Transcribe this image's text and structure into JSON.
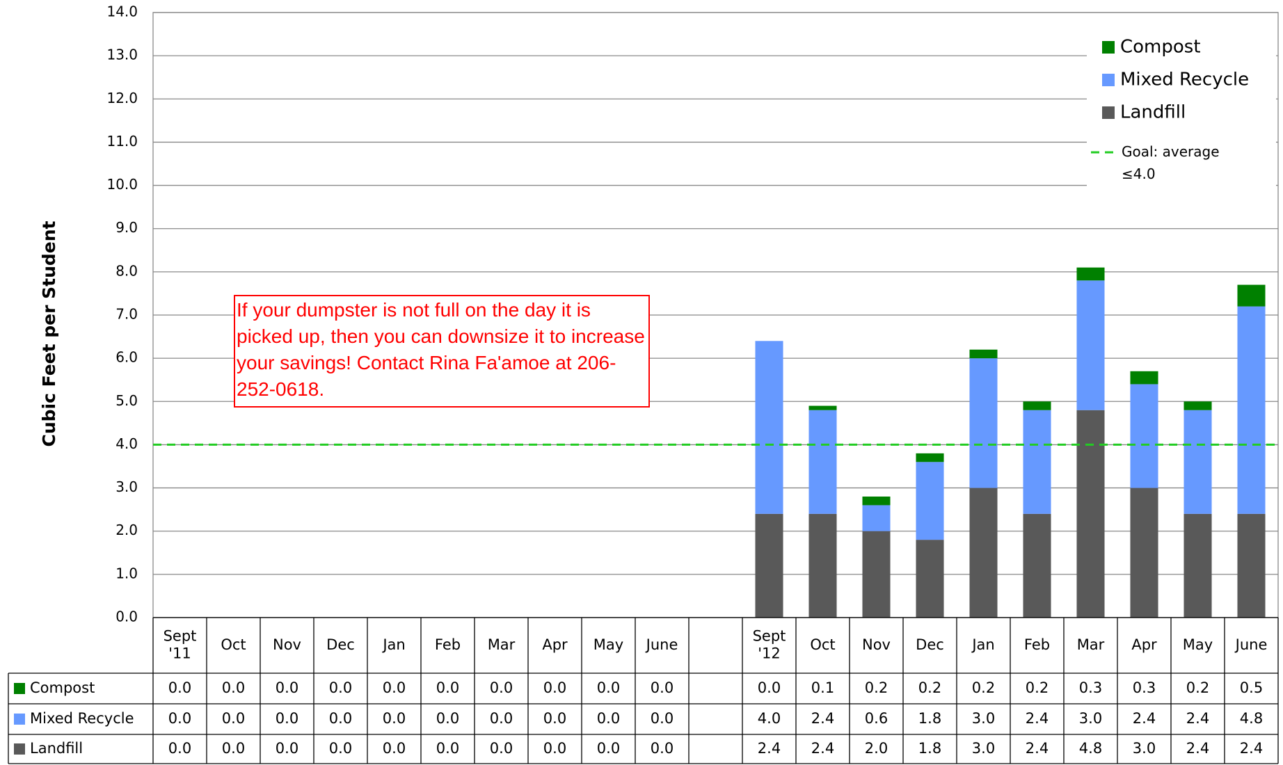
{
  "chart_data": {
    "type": "bar",
    "stacked": true,
    "ylabel": "Cubic Feet per Student",
    "categories": [
      "Sept\n'11",
      "Oct",
      "Nov",
      "Dec",
      "Jan",
      "Feb",
      "Mar",
      "Apr",
      "May",
      "June",
      null,
      "Sept\n'12",
      "Oct",
      "Nov",
      "Dec",
      "Jan",
      "Feb",
      "Mar",
      "Apr",
      "May",
      "June"
    ],
    "series": [
      {
        "name": "Compost",
        "color": "#008000",
        "values": [
          0,
          0,
          0,
          0,
          0,
          0,
          0,
          0,
          0,
          0,
          null,
          0,
          0.1,
          0.2,
          0.2,
          0.2,
          0.2,
          0.3,
          0.3,
          0.2,
          0.5
        ],
        "value_labels": [
          "0.0",
          "0.0",
          "0.0",
          "0.0",
          "0.0",
          "0.0",
          "0.0",
          "0.0",
          "0.0",
          "0.0",
          null,
          "0.0",
          "0.1",
          "0.2",
          "0.2",
          "0.2",
          "0.2",
          "0.3",
          "0.3",
          "0.2",
          "0.5"
        ]
      },
      {
        "name": "Mixed Recycle",
        "color": "#6699ff",
        "values": [
          0,
          0,
          0,
          0,
          0,
          0,
          0,
          0,
          0,
          0,
          null,
          4.0,
          2.4,
          0.6,
          1.8,
          3.0,
          2.4,
          3.0,
          2.4,
          2.4,
          4.8
        ],
        "value_labels": [
          "0.0",
          "0.0",
          "0.0",
          "0.0",
          "0.0",
          "0.0",
          "0.0",
          "0.0",
          "0.0",
          "0.0",
          null,
          "4.0",
          "2.4",
          "0.6",
          "1.8",
          "3.0",
          "2.4",
          "3.0",
          "2.4",
          "2.4",
          "4.8"
        ]
      },
      {
        "name": "Landfill",
        "color": "#595959",
        "values": [
          0,
          0,
          0,
          0,
          0,
          0,
          0,
          0,
          0,
          0,
          null,
          2.4,
          2.4,
          2.0,
          1.8,
          3.0,
          2.4,
          4.8,
          3.0,
          2.4,
          2.4
        ],
        "value_labels": [
          "0.0",
          "0.0",
          "0.0",
          "0.0",
          "0.0",
          "0.0",
          "0.0",
          "0.0",
          "0.0",
          "0.0",
          null,
          "2.4",
          "2.4",
          "2.0",
          "1.8",
          "3.0",
          "2.4",
          "4.8",
          "3.0",
          "2.4",
          "2.4"
        ]
      }
    ],
    "goal": {
      "label": "Goal: average ≤4.0",
      "value": 4,
      "color": "#22cc22"
    },
    "annotation": "If your dumpster is not full on the day it is picked up, then you can downsize it to increase your savings! Contact Rina Fa'amoe at 206-252-0618.",
    "ylim": [
      0,
      14
    ],
    "yticks": [
      {
        "value": 0,
        "label": "0.0"
      },
      {
        "value": 1,
        "label": "1.0"
      },
      {
        "value": 2,
        "label": "2.0"
      },
      {
        "value": 3,
        "label": "3.0"
      },
      {
        "value": 4,
        "label": "4.0"
      },
      {
        "value": 5,
        "label": "5.0"
      },
      {
        "value": 6,
        "label": "6.0"
      },
      {
        "value": 7,
        "label": "7.0"
      },
      {
        "value": 8,
        "label": "8.0"
      },
      {
        "value": 9,
        "label": "9.0"
      },
      {
        "value": 10,
        "label": "10.0"
      },
      {
        "value": 11,
        "label": "11.0"
      },
      {
        "value": 12,
        "label": "12.0"
      },
      {
        "value": 13,
        "label": "13.0"
      },
      {
        "value": 14,
        "label": "14.0"
      }
    ],
    "grid": true,
    "legend": "top-right"
  }
}
